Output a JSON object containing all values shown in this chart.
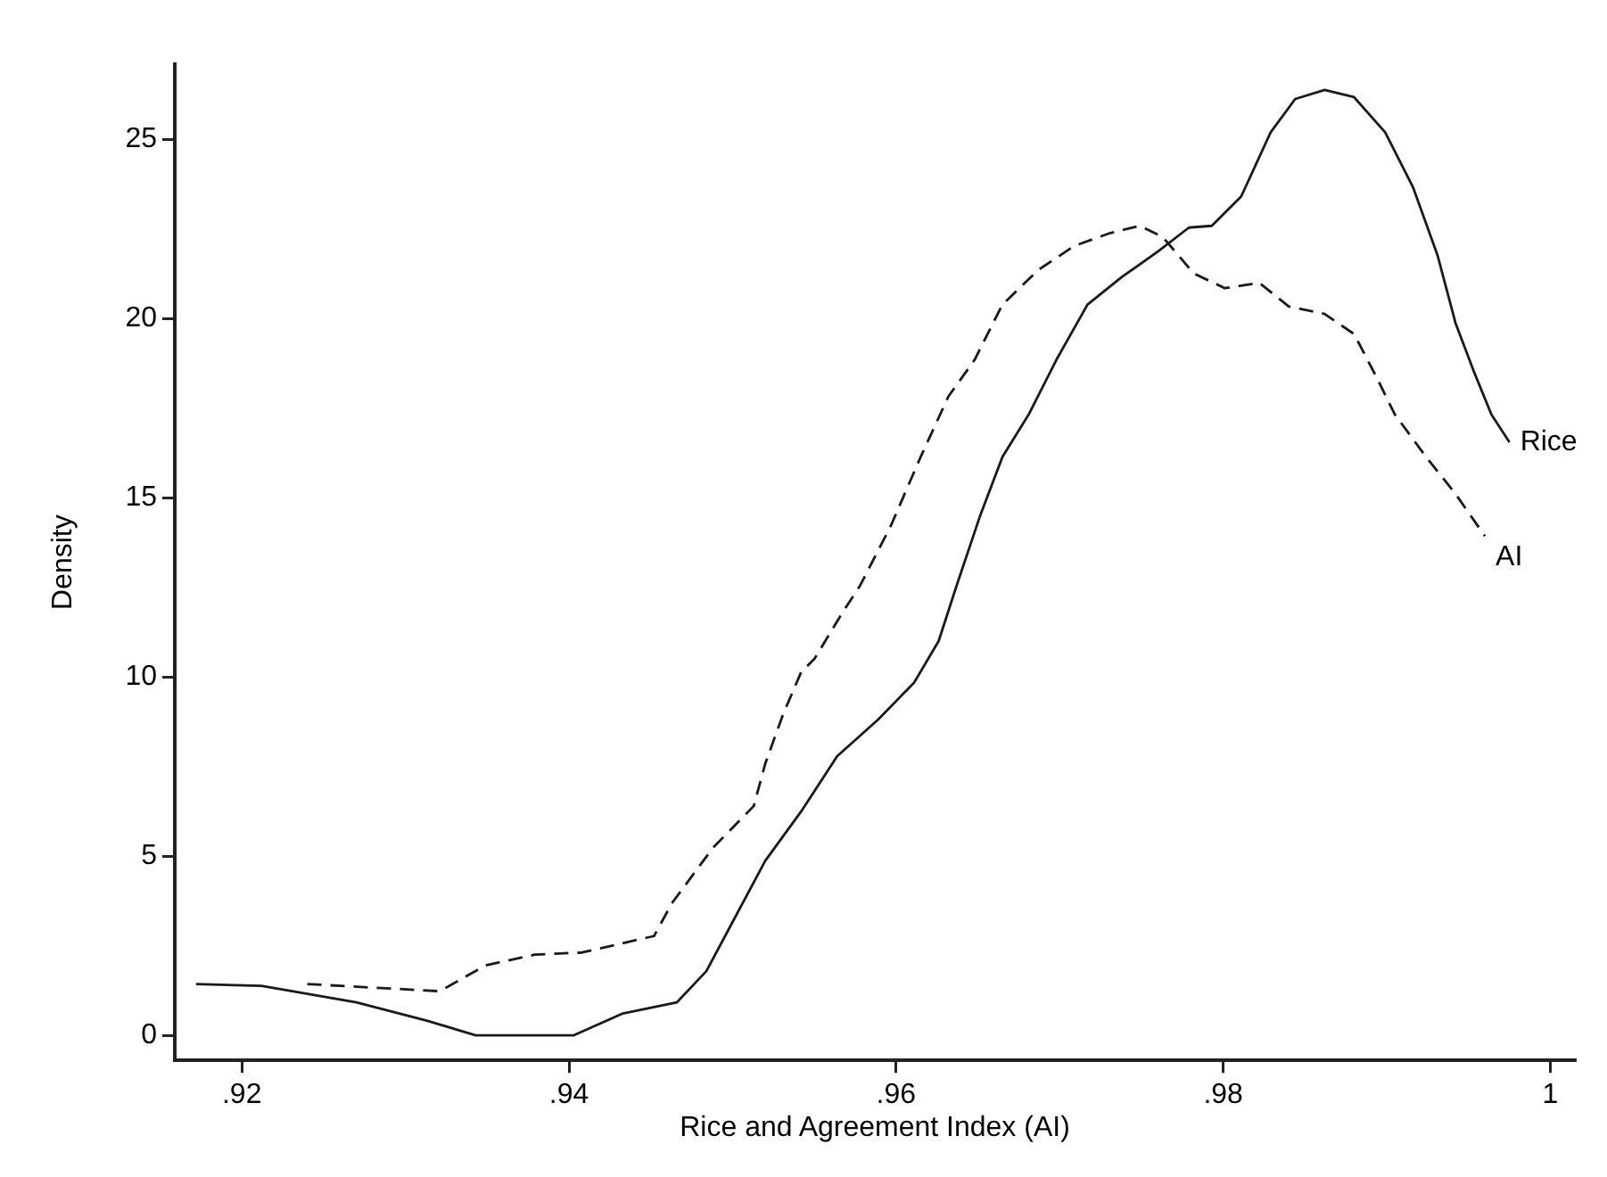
{
  "chart_data": {
    "type": "line",
    "xlabel": "Rice and Agreement Index (AI)",
    "ylabel": "Density",
    "xlim": [
      0.9159,
      1.0015
    ],
    "ylim": [
      -0.7,
      27.1
    ],
    "xticks": [
      {
        "value": 0.92,
        "label": ".92"
      },
      {
        "value": 0.94,
        "label": ".94"
      },
      {
        "value": 0.96,
        "label": ".96"
      },
      {
        "value": 0.98,
        "label": ".98"
      },
      1
    ],
    "yticks": [
      0,
      5,
      10,
      15,
      20,
      25
    ],
    "grid": false,
    "legend": false,
    "marker": "none",
    "series": [
      {
        "name": "Rice",
        "color": "#1a1a1a",
        "line_style": "solid",
        "x": [
          0.9172,
          0.9212,
          0.927,
          0.9313,
          0.9343,
          0.9403,
          0.9433,
          0.9466,
          0.9484,
          0.9502,
          0.952,
          0.9542,
          0.9564,
          0.9589,
          0.9611,
          0.9626,
          0.9637,
          0.9651,
          0.9665,
          0.9681,
          0.9698,
          0.9717,
          0.9738,
          0.976,
          0.9779,
          0.9793,
          0.9811,
          0.9829,
          0.9844,
          0.9862,
          0.988,
          0.9899,
          0.9916,
          0.9931,
          0.9942,
          0.9953,
          0.9964,
          0.9975
        ],
        "values": [
          1.43,
          1.38,
          0.92,
          0.41,
          0,
          0,
          0.61,
          0.92,
          1.79,
          3.33,
          4.87,
          6.25,
          7.79,
          8.81,
          9.84,
          11.0,
          12.55,
          14.45,
          16.14,
          17.32,
          18.85,
          20.39,
          21.16,
          21.87,
          22.54,
          22.59,
          23.41,
          25.2,
          26.13,
          26.38,
          26.18,
          25.2,
          23.67,
          21.77,
          19.88,
          18.55,
          17.32,
          16.55
        ]
      },
      {
        "name": "AI",
        "color": "#1a1a1a",
        "line_style": "dashed",
        "x": [
          0.924,
          0.9321,
          0.9349,
          0.9379,
          0.9408,
          0.9452,
          0.9463,
          0.9488,
          0.9513,
          0.952,
          0.9531,
          0.9542,
          0.955,
          0.9567,
          0.9578,
          0.9597,
          0.9615,
          0.9632,
          0.9648,
          0.9665,
          0.9687,
          0.9709,
          0.9731,
          0.9749,
          0.9763,
          0.9782,
          0.9801,
          0.9822,
          0.984,
          0.9862,
          0.988,
          0.9894,
          0.9905,
          0.9924,
          0.9942,
          0.996
        ],
        "values": [
          1.43,
          1.23,
          1.95,
          2.25,
          2.31,
          2.77,
          3.69,
          5.23,
          6.4,
          7.58,
          8.97,
          10.14,
          10.5,
          11.78,
          12.55,
          14.24,
          16.14,
          17.83,
          18.85,
          20.39,
          21.36,
          22.03,
          22.39,
          22.59,
          22.28,
          21.26,
          20.85,
          21.0,
          20.34,
          20.13,
          19.57,
          18.34,
          17.32,
          16.14,
          15.11,
          13.93
        ]
      }
    ]
  }
}
